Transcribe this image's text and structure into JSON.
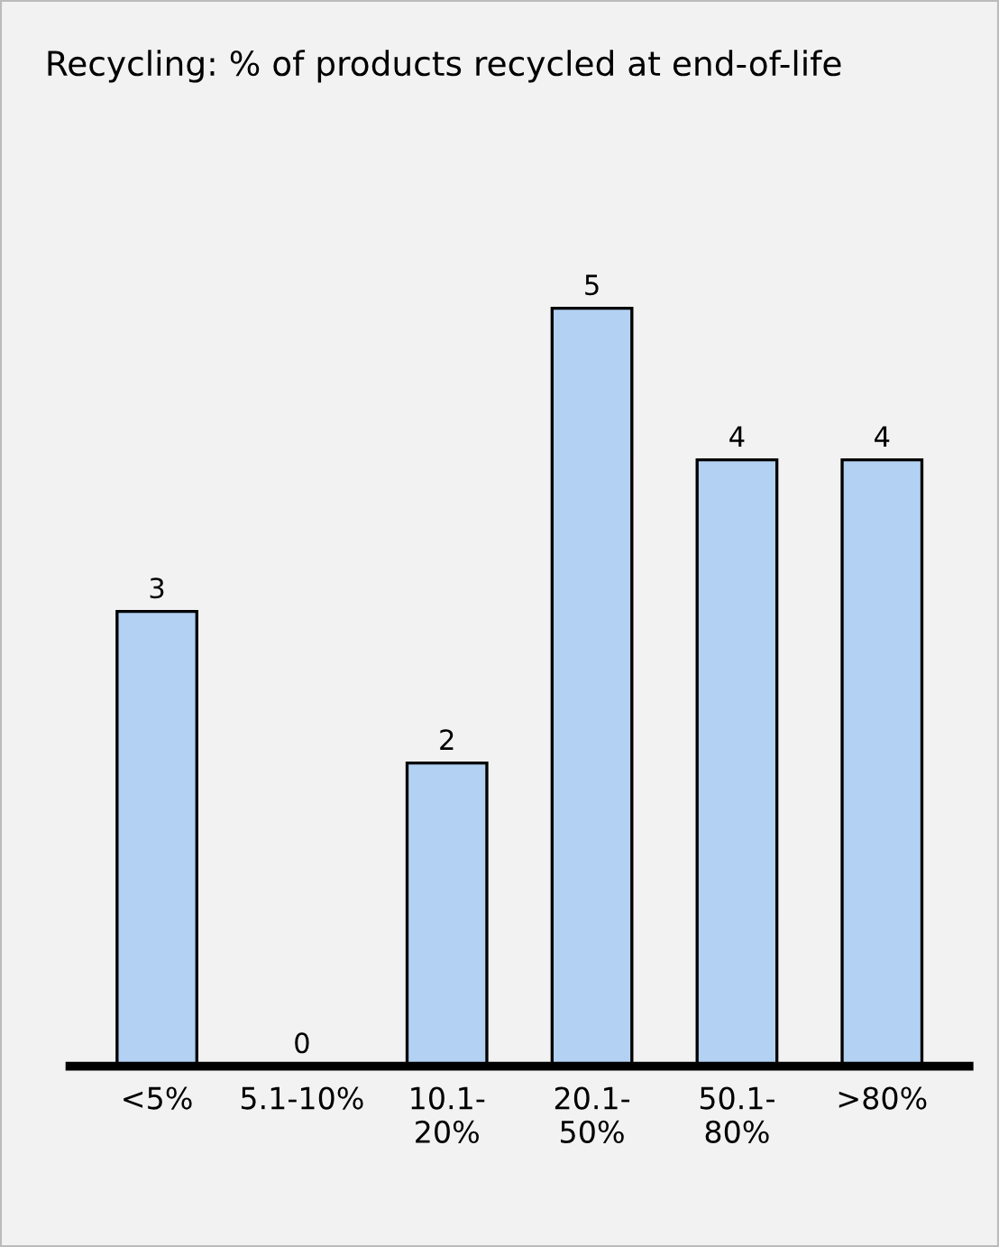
{
  "chart_data": {
    "type": "bar",
    "title": "Recycling: % of products recycled at end-of-life",
    "categories": [
      "<5%",
      "5.1-10%",
      "10.1-20%",
      "20.1-50%",
      "50.1-80%",
      ">80%"
    ],
    "values": [
      3,
      0,
      2,
      5,
      4,
      4
    ],
    "color": "#b3d1f3",
    "data_labels": true,
    "grid": false,
    "legend": false
  }
}
